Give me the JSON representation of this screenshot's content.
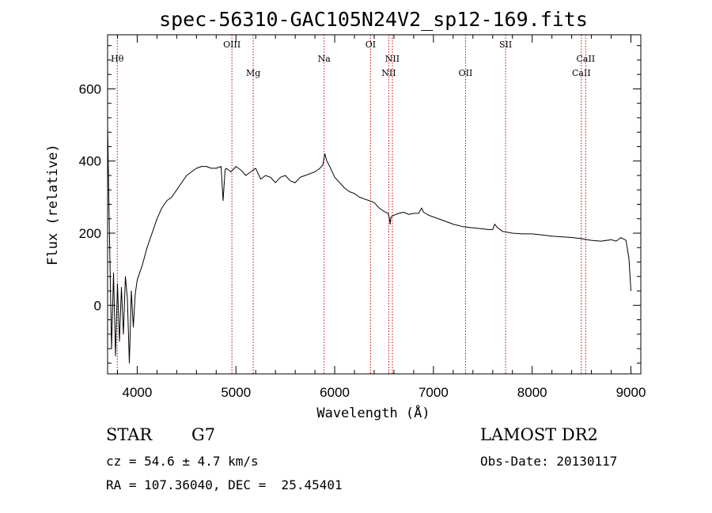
{
  "chart_data": {
    "type": "line",
    "title": "spec-56310-GAC105N24V2_sp12-169.fits",
    "xlabel": "Wavelength (Å)",
    "ylabel": "Flux (relative)",
    "xlim": [
      3700,
      9100
    ],
    "ylim": [
      -190,
      750
    ],
    "xticks": [
      4000,
      5000,
      6000,
      7000,
      8000,
      9000
    ],
    "yticks": [
      0,
      200,
      400,
      600
    ],
    "grid": false,
    "line_color": "#000000",
    "marker_color": "#cc0000",
    "lines": [
      {
        "label": "Hθ",
        "x": 3798,
        "row": 1
      },
      {
        "label": "OIII",
        "x": 4959,
        "row": 0
      },
      {
        "label": "Mg",
        "x": 5175,
        "row": 2
      },
      {
        "label": "Na",
        "x": 5893,
        "row": 1
      },
      {
        "label": "OI",
        "x": 6363,
        "row": 0
      },
      {
        "label": "NII",
        "x": 6548,
        "row": 2
      },
      {
        "label": "NII",
        "x": 6584,
        "row": 1
      },
      {
        "label": "OII",
        "x": 7325,
        "row": 2
      },
      {
        "label": "SII",
        "x": 7731,
        "row": 0
      },
      {
        "label": "CaII",
        "x": 8498,
        "row": 2
      },
      {
        "label": "CaII",
        "x": 8542,
        "row": 1
      }
    ],
    "series": [
      {
        "x": [
          3700,
          3720,
          3740,
          3760,
          3780,
          3800,
          3820,
          3840,
          3860,
          3880,
          3900,
          3920,
          3940,
          3960,
          3980,
          4000,
          4050,
          4100,
          4150,
          4200,
          4250,
          4300,
          4350,
          4400,
          4450,
          4500,
          4550,
          4600,
          4650,
          4700,
          4750,
          4800,
          4850,
          4870,
          4890,
          4900,
          4950,
          5000,
          5050,
          5100,
          5150,
          5200,
          5250,
          5300,
          5350,
          5400,
          5450,
          5500,
          5550,
          5600,
          5650,
          5700,
          5750,
          5800,
          5850,
          5880,
          5900,
          5920,
          5950,
          6000,
          6050,
          6100,
          6150,
          6200,
          6250,
          6300,
          6350,
          6400,
          6450,
          6500,
          6540,
          6555,
          6562,
          6570,
          6600,
          6650,
          6700,
          6750,
          6800,
          6850,
          6880,
          6900,
          6950,
          7000,
          7100,
          7200,
          7300,
          7400,
          7500,
          7550,
          7600,
          7620,
          7650,
          7700,
          7800,
          7900,
          8000,
          8100,
          8200,
          8300,
          8400,
          8500,
          8600,
          8700,
          8800,
          8850,
          8900,
          8950,
          8980,
          9000
        ],
        "y": [
          500,
          180,
          -120,
          90,
          -140,
          60,
          -100,
          50,
          -80,
          80,
          20,
          -160,
          40,
          -60,
          30,
          70,
          110,
          160,
          200,
          240,
          270,
          290,
          300,
          320,
          340,
          360,
          370,
          380,
          385,
          385,
          380,
          380,
          385,
          290,
          375,
          380,
          370,
          385,
          375,
          360,
          370,
          380,
          350,
          360,
          355,
          340,
          355,
          360,
          345,
          340,
          355,
          360,
          365,
          370,
          380,
          390,
          420,
          400,
          385,
          355,
          340,
          325,
          315,
          310,
          300,
          295,
          290,
          285,
          270,
          260,
          255,
          240,
          225,
          245,
          250,
          255,
          258,
          252,
          255,
          255,
          270,
          258,
          250,
          245,
          235,
          225,
          218,
          215,
          212,
          210,
          210,
          225,
          215,
          205,
          200,
          198,
          198,
          195,
          192,
          190,
          188,
          185,
          180,
          178,
          182,
          178,
          188,
          180,
          130,
          40
        ]
      }
    ]
  },
  "info": {
    "object_type": "STAR",
    "subclass": "G7",
    "survey": "LAMOST DR2",
    "cz": "cz = 54.6 ± 4.7 km/s",
    "obs_date": "Obs-Date: 20130117",
    "coords": "RA = 107.36040, DEC =  25.45401"
  }
}
